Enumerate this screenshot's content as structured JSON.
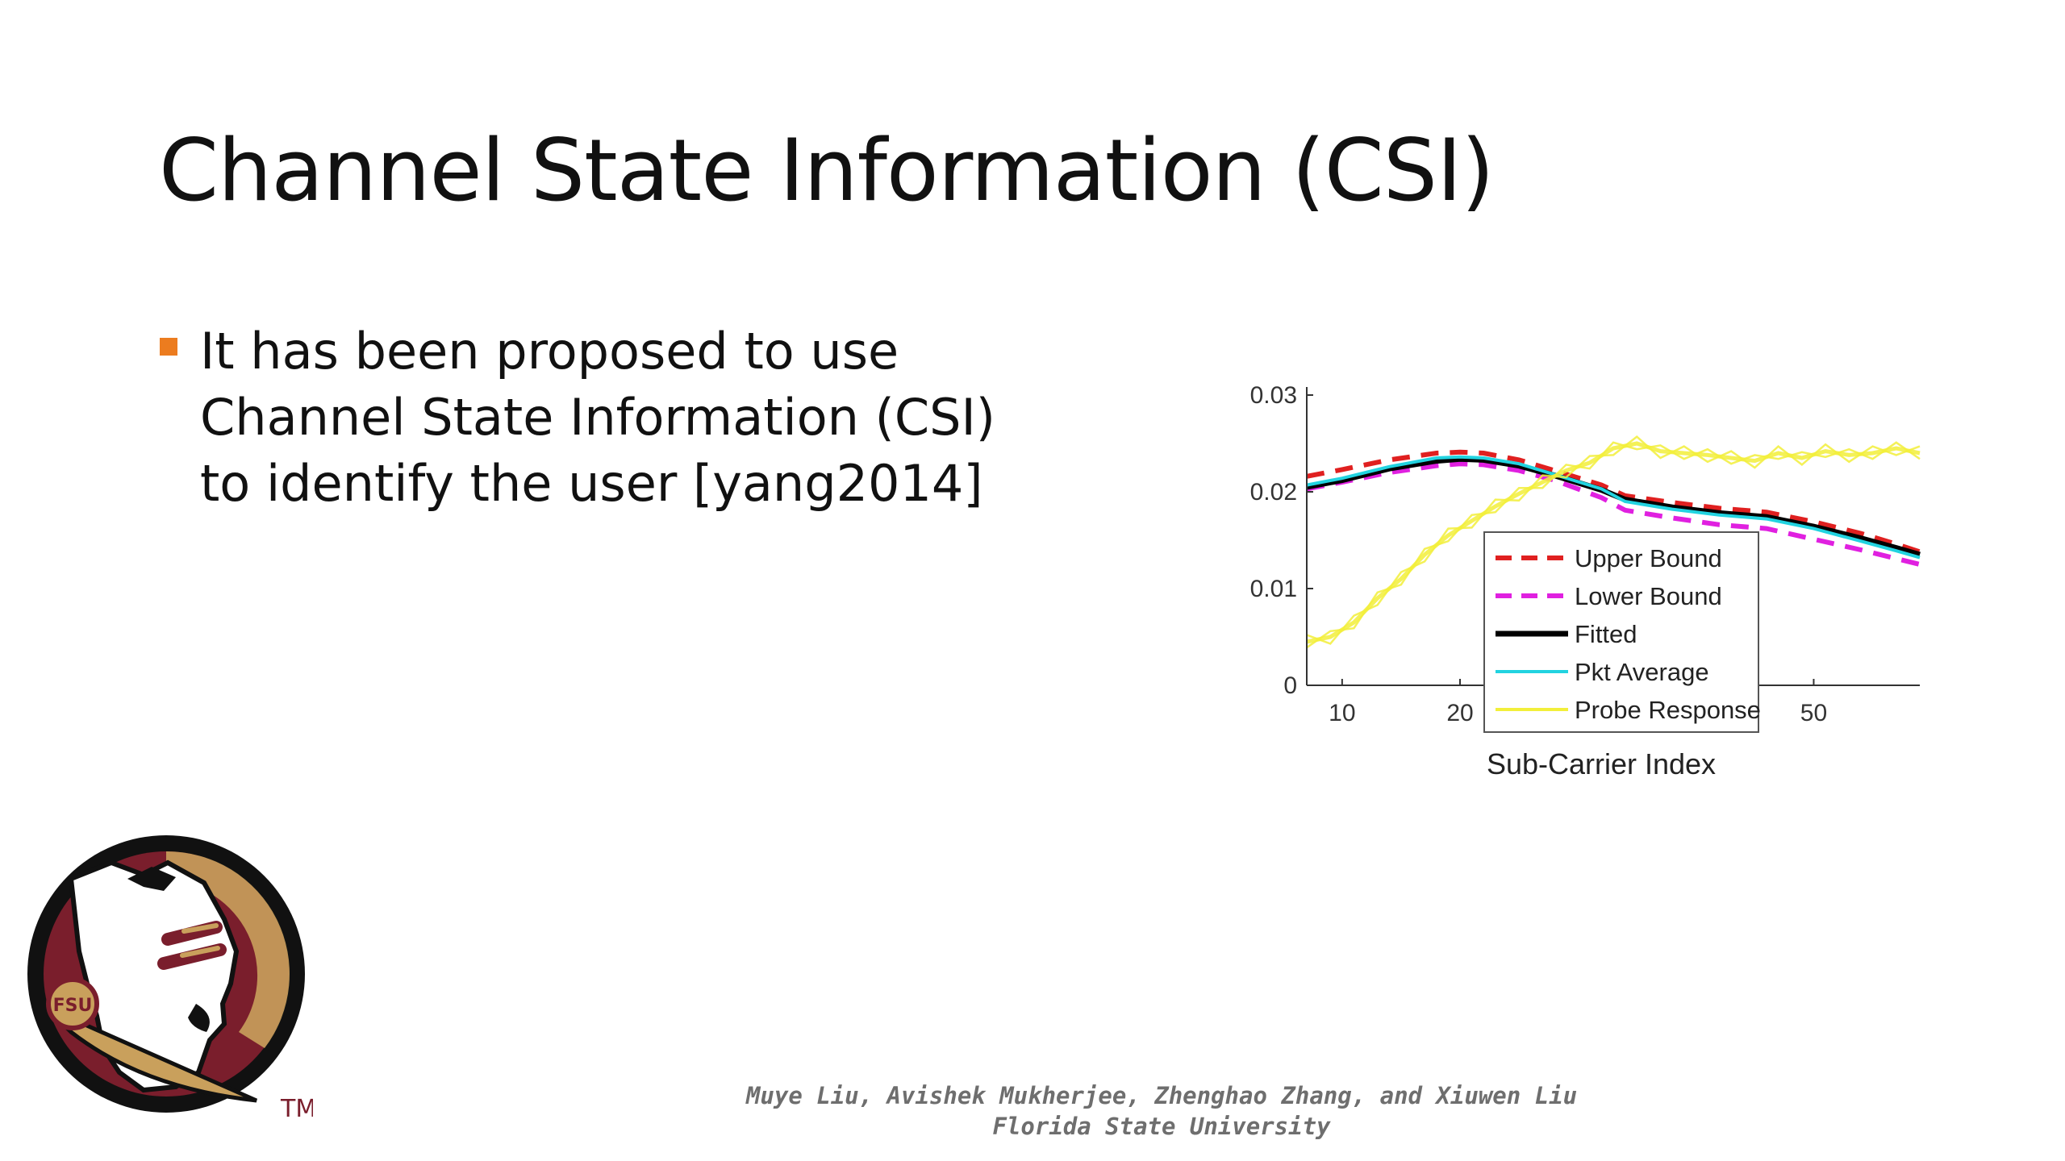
{
  "slide": {
    "title": "Channel State Information (CSI)",
    "bullets": [
      {
        "text": "It has been proposed to use Channel State Information (CSI) to identify the user [yang2014]"
      }
    ],
    "footer": {
      "authors": "Muye Liu, Avishek Mukherjee, Zhenghao Zhang, and Xiuwen Liu",
      "affiliation": "Florida State University"
    },
    "logo": {
      "mark": "TM",
      "monogram": "FSU"
    }
  },
  "colors": {
    "bullet": "#ec7c1f",
    "upper": "#e02020",
    "lower": "#e020e0",
    "fitted": "#000000",
    "pkt": "#22d3e0",
    "probe": "#f2ef3a",
    "garnet": "#7a1e2c",
    "gold": "#c9a05c"
  },
  "chart_data": {
    "type": "line",
    "title": "",
    "xlabel": "Sub-Carrier Index",
    "ylabel": "",
    "xlim": [
      7,
      59
    ],
    "ylim": [
      0,
      0.03
    ],
    "xticks": [
      10,
      20,
      50
    ],
    "yticks": [
      0,
      0.01,
      0.02,
      0.03
    ],
    "ytick_labels": [
      "0",
      "0.01",
      "0.02",
      "0.03"
    ],
    "legend_position": "center-bottom",
    "grid": false,
    "series": [
      {
        "name": "Upper Bound",
        "style": "dashed",
        "color_key": "upper",
        "x": [
          7,
          10,
          14,
          18,
          20,
          22,
          25,
          28,
          32,
          34,
          38,
          42,
          46,
          50,
          54,
          57,
          59
        ],
        "y": [
          0.0216,
          0.0223,
          0.0233,
          0.024,
          0.0241,
          0.024,
          0.0233,
          0.0222,
          0.0207,
          0.0196,
          0.0189,
          0.0183,
          0.0179,
          0.0169,
          0.0157,
          0.0146,
          0.0138
        ]
      },
      {
        "name": "Lower Bound",
        "style": "dashed",
        "color_key": "lower",
        "x": [
          7,
          10,
          14,
          18,
          20,
          22,
          25,
          28,
          32,
          34,
          38,
          42,
          46,
          50,
          54,
          57,
          59
        ],
        "y": [
          0.0203,
          0.021,
          0.022,
          0.0227,
          0.0229,
          0.0228,
          0.0222,
          0.0212,
          0.0194,
          0.0181,
          0.0173,
          0.0166,
          0.0162,
          0.0151,
          0.014,
          0.0131,
          0.0125
        ]
      },
      {
        "name": "Fitted",
        "style": "solid",
        "color_key": "fitted",
        "x": [
          7,
          10,
          14,
          18,
          20,
          22,
          25,
          28,
          32,
          34,
          38,
          42,
          46,
          50,
          54,
          57,
          59
        ],
        "y": [
          0.0205,
          0.0212,
          0.0224,
          0.0232,
          0.0234,
          0.0233,
          0.0227,
          0.0217,
          0.0202,
          0.0192,
          0.0184,
          0.0178,
          0.0174,
          0.0164,
          0.0152,
          0.0142,
          0.0135
        ]
      },
      {
        "name": "Pkt Average",
        "style": "solid",
        "color_key": "pkt",
        "x": [
          7,
          10,
          14,
          18,
          20,
          22,
          25,
          28,
          32,
          34,
          38,
          42,
          46,
          50,
          54,
          57,
          59
        ],
        "y": [
          0.0207,
          0.0214,
          0.0226,
          0.0235,
          0.0236,
          0.0235,
          0.0229,
          0.0218,
          0.0203,
          0.019,
          0.0182,
          0.0176,
          0.0172,
          0.0162,
          0.0149,
          0.0139,
          0.0132
        ]
      },
      {
        "name": "Probe Response",
        "style": "solid",
        "color_key": "probe",
        "x": [
          7,
          9,
          11,
          13,
          15,
          17,
          19,
          21,
          23,
          25,
          27,
          29,
          31,
          33,
          35,
          37,
          39,
          41,
          43,
          45,
          47,
          49,
          51,
          53,
          55,
          57,
          59
        ],
        "y": [
          0.0045,
          0.005,
          0.0065,
          0.009,
          0.011,
          0.0135,
          0.0155,
          0.017,
          0.0185,
          0.0198,
          0.021,
          0.0222,
          0.023,
          0.0245,
          0.025,
          0.0242,
          0.024,
          0.0238,
          0.0235,
          0.0232,
          0.024,
          0.0235,
          0.0242,
          0.0238,
          0.024,
          0.0245,
          0.024
        ]
      }
    ]
  }
}
